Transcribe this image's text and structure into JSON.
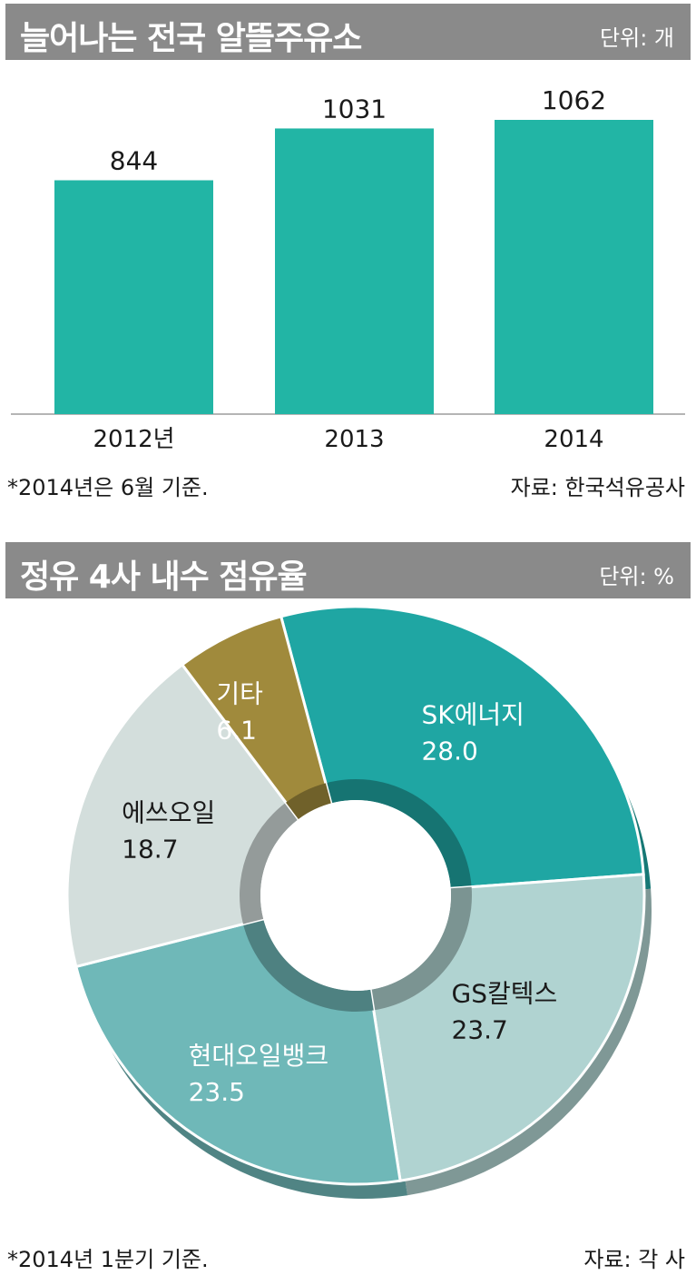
{
  "charts": {
    "bar": {
      "title": "늘어나는 전국 알뜰주유소",
      "unit": "단위: 개",
      "footnote": "*2014년은 6월 기준.",
      "source": "자료: 한국석유공사"
    },
    "donut": {
      "title": "정유 4사 내수 점유율",
      "unit": "단위: %",
      "footnote": "*2014년 1분기 기준.",
      "source": "자료: 각 사"
    }
  },
  "chart_data": [
    {
      "type": "bar",
      "title": "늘어나는 전국 알뜰주유소",
      "unit": "개",
      "categories": [
        "2012년",
        "2013",
        "2014"
      ],
      "values": [
        844,
        1031,
        1062
      ],
      "color": "#22b5a5",
      "grid": false,
      "legend": "none"
    },
    {
      "type": "pie",
      "style": "donut",
      "title": "정유 4사 내수 점유율",
      "unit": "%",
      "labels": [
        "SK에너지",
        "GS칼텍스",
        "현대오일뱅크",
        "에쓰오일",
        "기타"
      ],
      "values": [
        28.0,
        23.7,
        23.5,
        18.7,
        6.1
      ],
      "display_values": [
        "28.0",
        "23.7",
        "23.5",
        "18.7",
        "6.1"
      ],
      "colors": [
        "#1fa6a3",
        "#b0d3d1",
        "#6fb8b8",
        "#d3dedc",
        "#a08a3c"
      ],
      "label_colors": [
        "#ffffff",
        "#1a1a1a",
        "#ffffff",
        "#1a1a1a",
        "#ffffff"
      ]
    }
  ]
}
